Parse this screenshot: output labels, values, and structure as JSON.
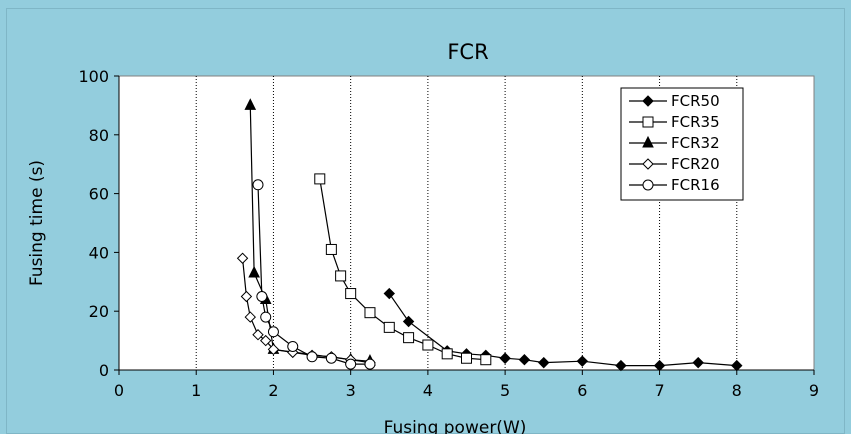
{
  "chart_data": {
    "type": "line",
    "title": "FCR",
    "xlabel": "Fusing power(W)",
    "ylabel": "Fusing time (s)",
    "xlim": [
      0,
      9
    ],
    "ylim": [
      0,
      100
    ],
    "xticks": [
      0,
      1,
      2,
      3,
      4,
      5,
      6,
      7,
      8,
      9
    ],
    "yticks": [
      0,
      20,
      40,
      60,
      80,
      100
    ],
    "grid": "vertical dotted",
    "legend_position": "top-right",
    "series": [
      {
        "name": "FCR50",
        "marker": "diamond-filled",
        "x": [
          3.5,
          3.75,
          4.25,
          4.5,
          4.75,
          5.0,
          5.25,
          5.5,
          6.0,
          6.5,
          7.0,
          7.5,
          8.0
        ],
        "y": [
          26,
          16.5,
          6.5,
          5.5,
          5,
          4,
          3.5,
          2.5,
          3,
          1.5,
          1.5,
          2.5,
          1.5
        ]
      },
      {
        "name": "FCR35",
        "marker": "square-open",
        "x": [
          2.6,
          2.75,
          2.87,
          3.0,
          3.25,
          3.5,
          3.75,
          4.0,
          4.25,
          4.5,
          4.75
        ],
        "y": [
          65,
          41,
          32,
          26,
          19.5,
          14.5,
          11,
          8.5,
          5.5,
          4,
          3.5
        ]
      },
      {
        "name": "FCR32",
        "marker": "triangle-filled",
        "x": [
          1.7,
          1.75,
          1.9,
          2.0,
          3.0,
          3.25
        ],
        "y": [
          90,
          33,
          24,
          7,
          3.5,
          3
        ]
      },
      {
        "name": "FCR20",
        "marker": "diamond-open",
        "x": [
          1.6,
          1.65,
          1.7,
          1.8,
          1.9,
          2.0,
          2.25,
          2.5,
          2.75,
          3.0,
          3.25
        ],
        "y": [
          38,
          25,
          18,
          12,
          10,
          7,
          6,
          5,
          4.5,
          3.5,
          2.5
        ]
      },
      {
        "name": "FCR16",
        "marker": "circle-open",
        "x": [
          1.8,
          1.85,
          1.9,
          2.0,
          2.25,
          2.5,
          2.75,
          3.0,
          3.25
        ],
        "y": [
          63,
          25,
          18,
          13,
          8,
          4.5,
          4,
          2,
          2
        ]
      }
    ]
  }
}
